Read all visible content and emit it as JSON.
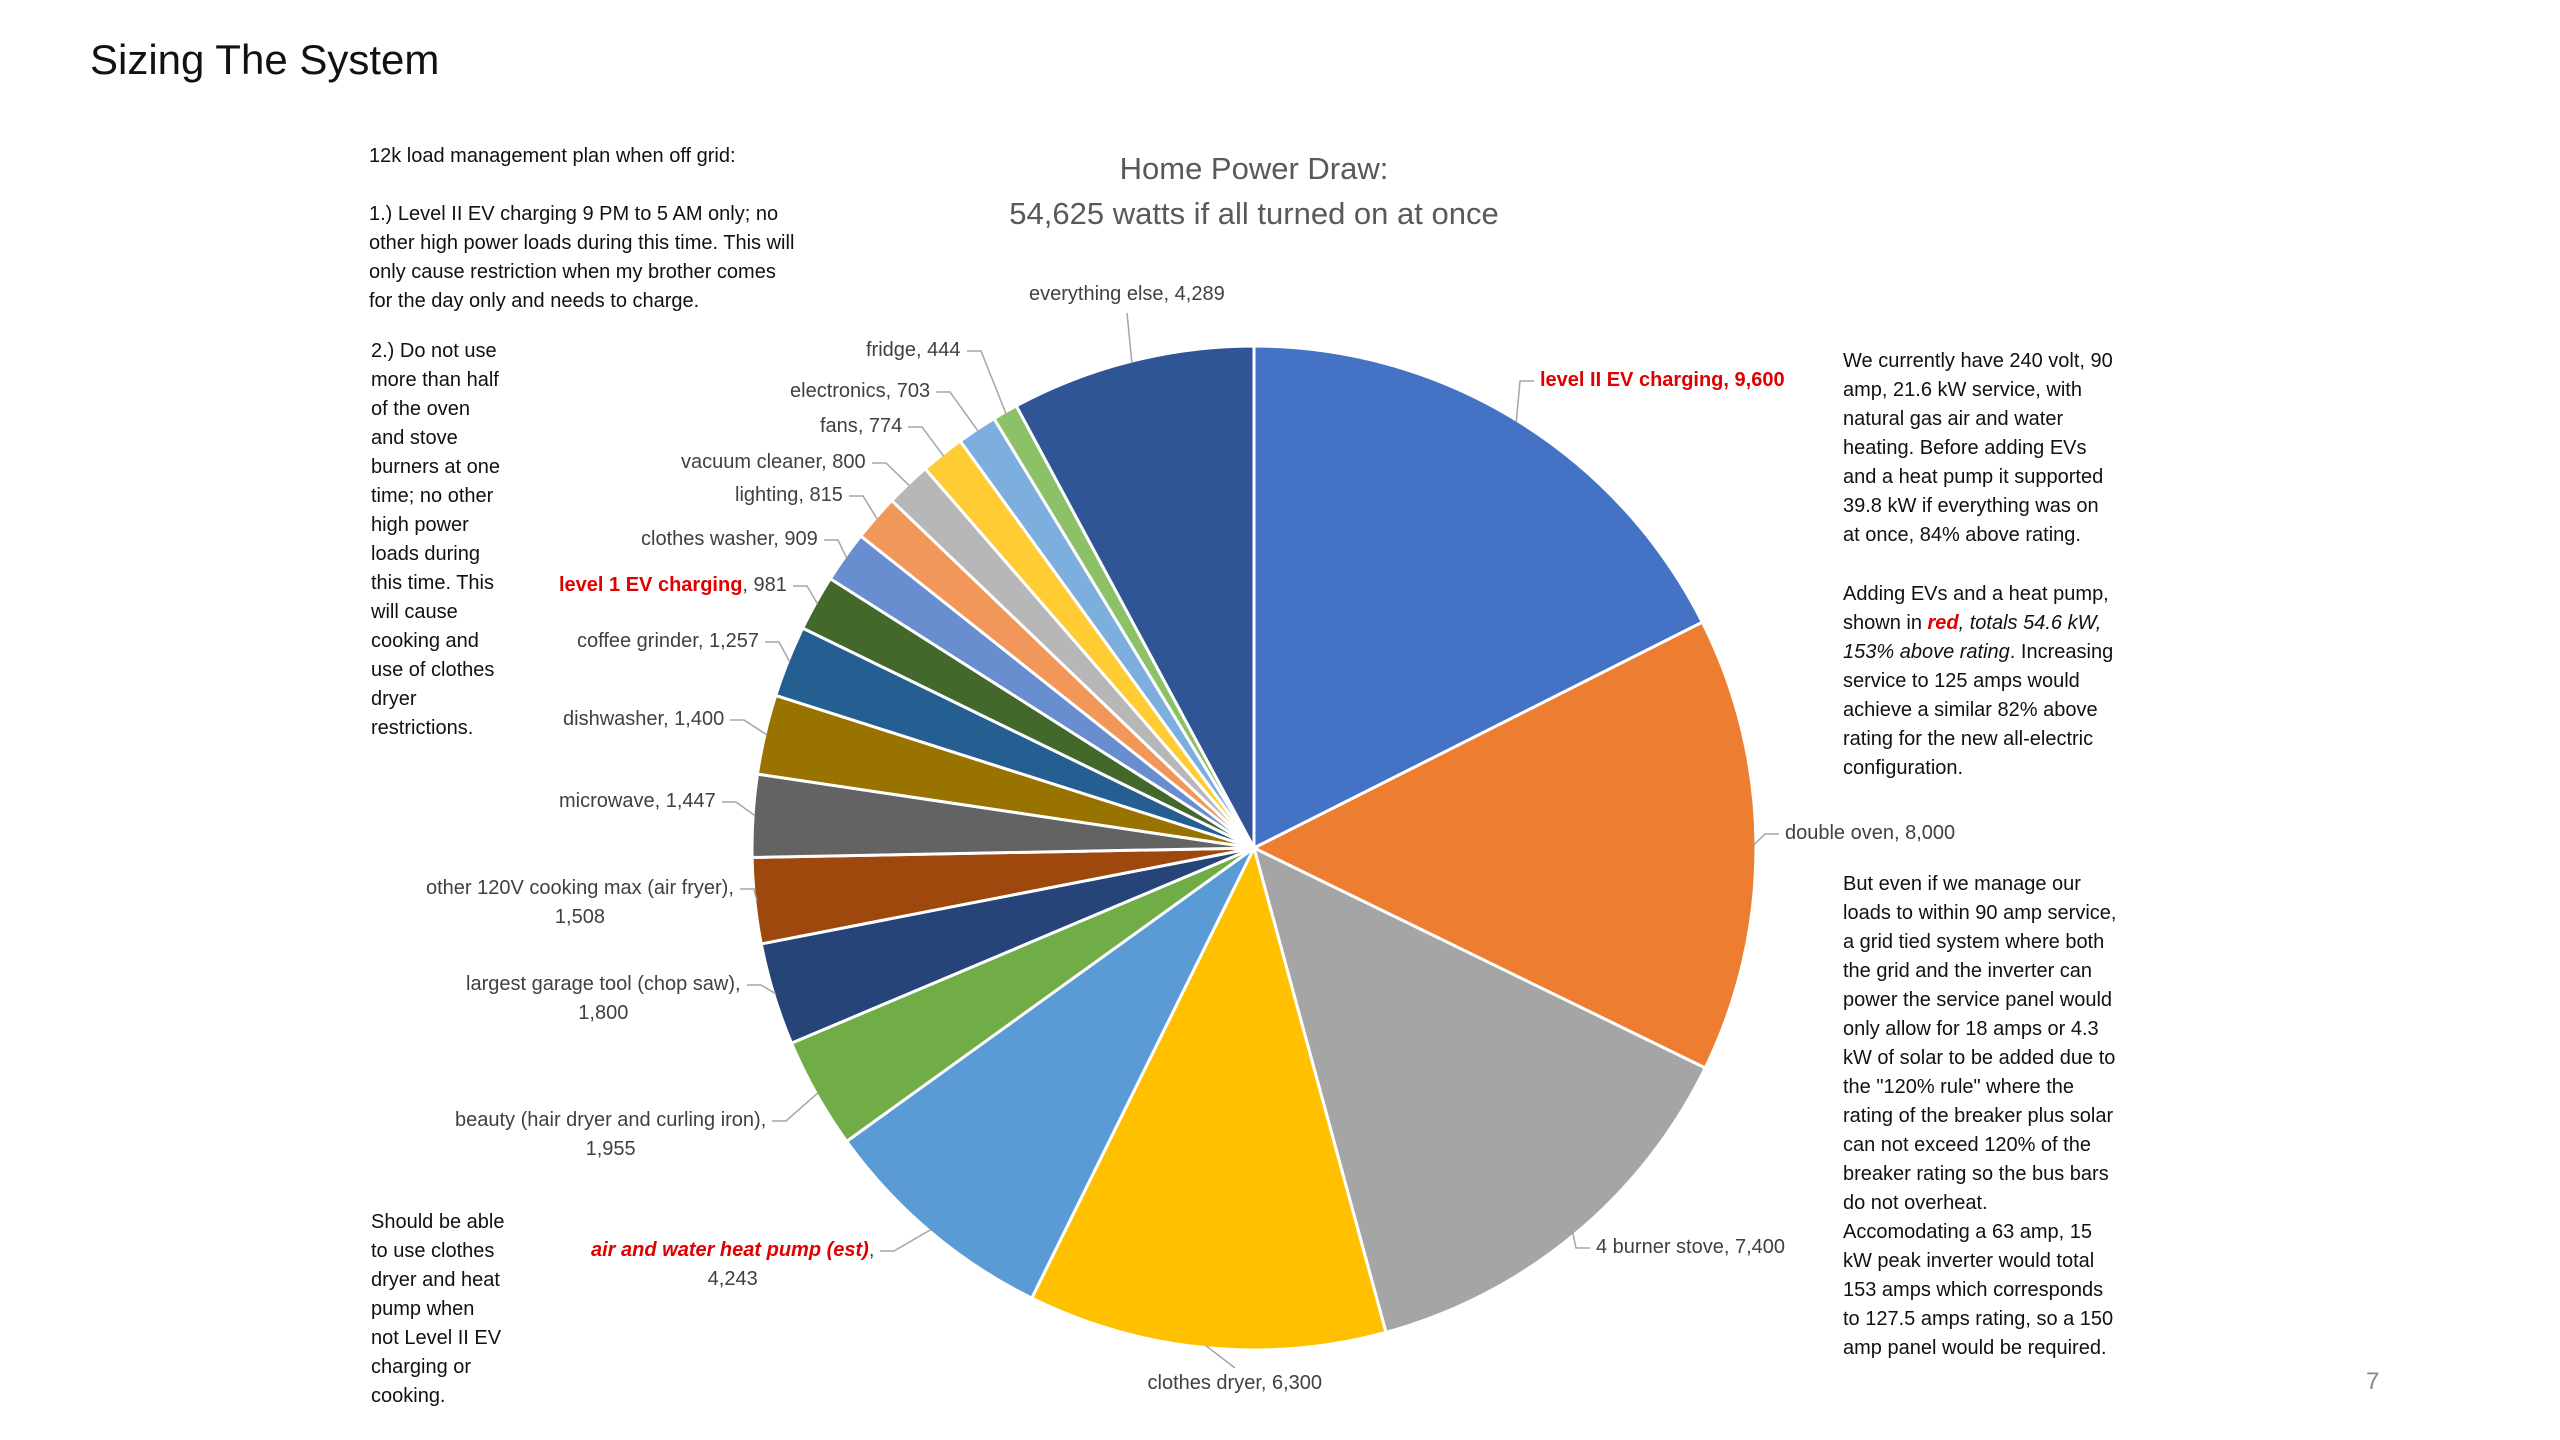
{
  "slide": {
    "title": "Sizing The System",
    "page_number": "7"
  },
  "left_text": {
    "heading": [
      "12k load management plan when off grid:"
    ],
    "item1": [
      "1.) Level II EV charging 9 PM to 5 AM only; no",
      "other high power loads during this time. This will",
      "only cause restriction when my brother comes",
      "for the day only and needs to charge."
    ],
    "item2": [
      "2.) Do not use",
      "more than half",
      "of the oven",
      "and stove",
      "burners at one",
      "time; no other",
      "high power",
      "loads during",
      "this time.  This",
      "will cause",
      "cooking and",
      "use of clothes",
      "dryer",
      "restrictions."
    ],
    "bottom_note": [
      "Should be able",
      "to use clothes",
      "dryer and heat",
      "pump when",
      "not Level II EV",
      "charging or",
      "cooking."
    ]
  },
  "right_text": {
    "para1": [
      "We currently have 240 volt, 90",
      "amp, 21.6 kW service, with",
      "natural gas air and water",
      "heating.  Before adding EVs",
      "and a heat pump it supported",
      "39.8 kW if everything was on",
      "at once, 84% above rating."
    ],
    "para2": [
      "Adding EVs and a heat pump,",
      [
        {
          "t": "shown in "
        },
        {
          "t": "red",
          "s": "red it b"
        },
        {
          "t": ", totals 54.6 kW,",
          "s": "it"
        }
      ],
      [
        {
          "t": "153% above rating",
          "s": "it"
        },
        {
          "t": ". Increasing"
        }
      ],
      "service to 125 amps would",
      "achieve a similar 82% above",
      "rating for the new all-electric",
      "configuration."
    ],
    "para3": [
      "But even if we manage our",
      "loads to within 90 amp service,",
      "a grid tied system where both",
      "the grid and the inverter can",
      "power the service panel would",
      "only allow for 18 amps or 4.3",
      "kW of solar to be added due to",
      "the \"120% rule\" where the",
      "rating of the breaker plus solar",
      "can not exceed 120% of the",
      "breaker rating so the bus bars",
      "do not overheat.",
      "Accomodating a 63 amp, 15",
      "kW peak inverter would total",
      "153 amps which corresponds",
      "to 127.5 amps rating, so a 150",
      "amp panel would be required."
    ]
  },
  "chart_data": {
    "type": "pie",
    "title": [
      "Home Power Draw:",
      "54,625 watts if all turned on at once"
    ],
    "start": "top, clockwise",
    "slices": [
      {
        "label": "level II EV charging",
        "value": 9600,
        "color": "#4472C4",
        "highlight": "red-bold-all"
      },
      {
        "label": "double oven",
        "value": 8000,
        "color": "#ED7D31"
      },
      {
        "label": "4 burner stove",
        "value": 7400,
        "color": "#A5A5A5"
      },
      {
        "label": "clothes dryer",
        "value": 6300,
        "color": "#FFC000"
      },
      {
        "label": "air and water heat pump (est)",
        "value": 4243,
        "color": "#5B9BD5",
        "highlight": "red-bold-italic-name"
      },
      {
        "label": "beauty (hair dryer and curling iron)",
        "value": 1955,
        "color": "#70AD47"
      },
      {
        "label": "largest garage tool (chop saw)",
        "value": 1800,
        "color": "#264478"
      },
      {
        "label": "other 120V cooking max (air fryer)",
        "value": 1508,
        "color": "#9E480E"
      },
      {
        "label": "microwave",
        "value": 1447,
        "color": "#636363"
      },
      {
        "label": "dishwasher",
        "value": 1400,
        "color": "#997300"
      },
      {
        "label": "coffee grinder",
        "value": 1257,
        "color": "#255E91"
      },
      {
        "label": "level 1 EV charging",
        "value": 981,
        "color": "#43682B",
        "highlight": "red-bold-name"
      },
      {
        "label": "clothes washer",
        "value": 909,
        "color": "#698ED0"
      },
      {
        "label": "lighting",
        "value": 815,
        "color": "#F1975A"
      },
      {
        "label": "vacuum cleaner",
        "value": 800,
        "color": "#B7B7B7"
      },
      {
        "label": "fans",
        "value": 774,
        "color": "#FFCD33"
      },
      {
        "label": "electronics",
        "value": 703,
        "color": "#7CAFDD"
      },
      {
        "label": "fridge",
        "value": 444,
        "color": "#8CC168"
      },
      {
        "label": "everything else",
        "value": 4289,
        "color": "#2F5597"
      }
    ]
  }
}
